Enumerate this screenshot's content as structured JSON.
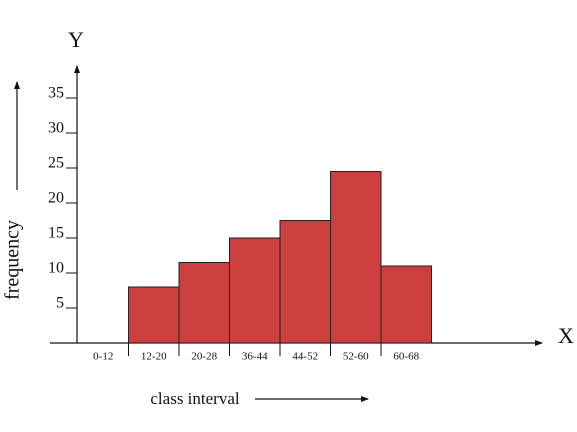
{
  "chart_data": {
    "type": "bar",
    "x_axis_name": "X",
    "y_axis_name": "Y",
    "x_label": "class interval",
    "y_label": "frequency",
    "categories": [
      "0-12",
      "12-20",
      "20-28",
      "36-44",
      "44-52",
      "52-60",
      "60-68"
    ],
    "values": [
      0,
      8,
      11.5,
      15,
      17.5,
      24.5,
      11
    ],
    "color": "#cc3f3f",
    "ylim": [
      0,
      39
    ],
    "yticks": [
      5,
      10,
      15,
      20,
      25,
      30,
      35
    ],
    "grid": false
  }
}
